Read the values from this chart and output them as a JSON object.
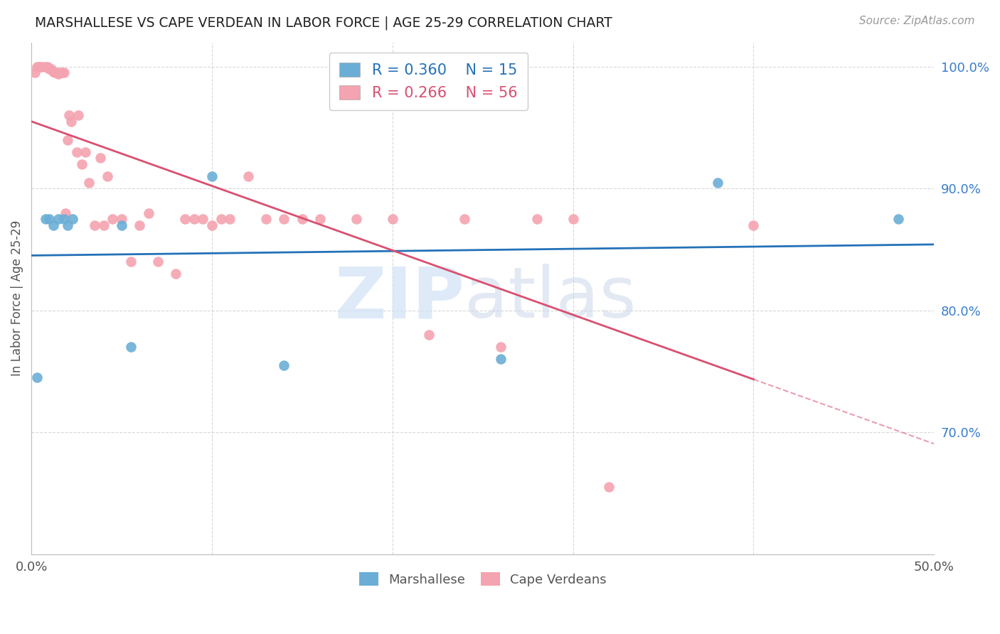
{
  "title": "MARSHALLESE VS CAPE VERDEAN IN LABOR FORCE | AGE 25-29 CORRELATION CHART",
  "source": "Source: ZipAtlas.com",
  "ylabel": "In Labor Force | Age 25-29",
  "xlim": [
    0.0,
    0.5
  ],
  "ylim": [
    0.6,
    1.02
  ],
  "ytick_labels_right": [
    "100.0%",
    "90.0%",
    "80.0%",
    "70.0%"
  ],
  "ytick_positions_right": [
    1.0,
    0.9,
    0.8,
    0.7
  ],
  "marshallese_R": 0.36,
  "marshallese_N": 15,
  "capeverdean_R": 0.266,
  "capeverdean_N": 56,
  "marshallese_color": "#6aaed6",
  "capeverdean_color": "#f4a3b0",
  "trendline_marshallese_color": "#2471b8",
  "trendline_capeverdean_color": "#d94f70",
  "marshallese_x": [
    0.003,
    0.008,
    0.01,
    0.012,
    0.015,
    0.018,
    0.02,
    0.023,
    0.05,
    0.055,
    0.1,
    0.14,
    0.26,
    0.38,
    0.48
  ],
  "marshallese_y": [
    0.745,
    0.875,
    0.875,
    0.87,
    0.875,
    0.875,
    0.87,
    0.875,
    0.87,
    0.77,
    0.91,
    0.755,
    0.76,
    0.905,
    0.875
  ],
  "capeverdean_x": [
    0.002,
    0.003,
    0.004,
    0.005,
    0.006,
    0.008,
    0.009,
    0.01,
    0.011,
    0.012,
    0.013,
    0.014,
    0.015,
    0.016,
    0.017,
    0.018,
    0.019,
    0.02,
    0.021,
    0.022,
    0.025,
    0.026,
    0.028,
    0.03,
    0.032,
    0.035,
    0.038,
    0.04,
    0.042,
    0.045,
    0.05,
    0.055,
    0.06,
    0.065,
    0.07,
    0.08,
    0.085,
    0.09,
    0.095,
    0.1,
    0.105,
    0.11,
    0.12,
    0.13,
    0.14,
    0.15,
    0.16,
    0.18,
    0.2,
    0.22,
    0.24,
    0.26,
    0.28,
    0.3,
    0.32,
    0.4
  ],
  "capeverdean_y": [
    0.995,
    1.0,
    1.0,
    1.0,
    1.0,
    1.0,
    1.0,
    0.998,
    0.998,
    0.996,
    0.995,
    0.995,
    0.994,
    0.995,
    0.995,
    0.995,
    0.88,
    0.94,
    0.96,
    0.955,
    0.93,
    0.96,
    0.92,
    0.93,
    0.905,
    0.87,
    0.925,
    0.87,
    0.91,
    0.875,
    0.875,
    0.84,
    0.87,
    0.88,
    0.84,
    0.83,
    0.875,
    0.875,
    0.875,
    0.87,
    0.875,
    0.875,
    0.91,
    0.875,
    0.875,
    0.875,
    0.875,
    0.875,
    0.875,
    0.78,
    0.875,
    0.77,
    0.875,
    0.875,
    0.655,
    0.87
  ],
  "background_color": "#ffffff",
  "grid_color": "#d8d8d8"
}
